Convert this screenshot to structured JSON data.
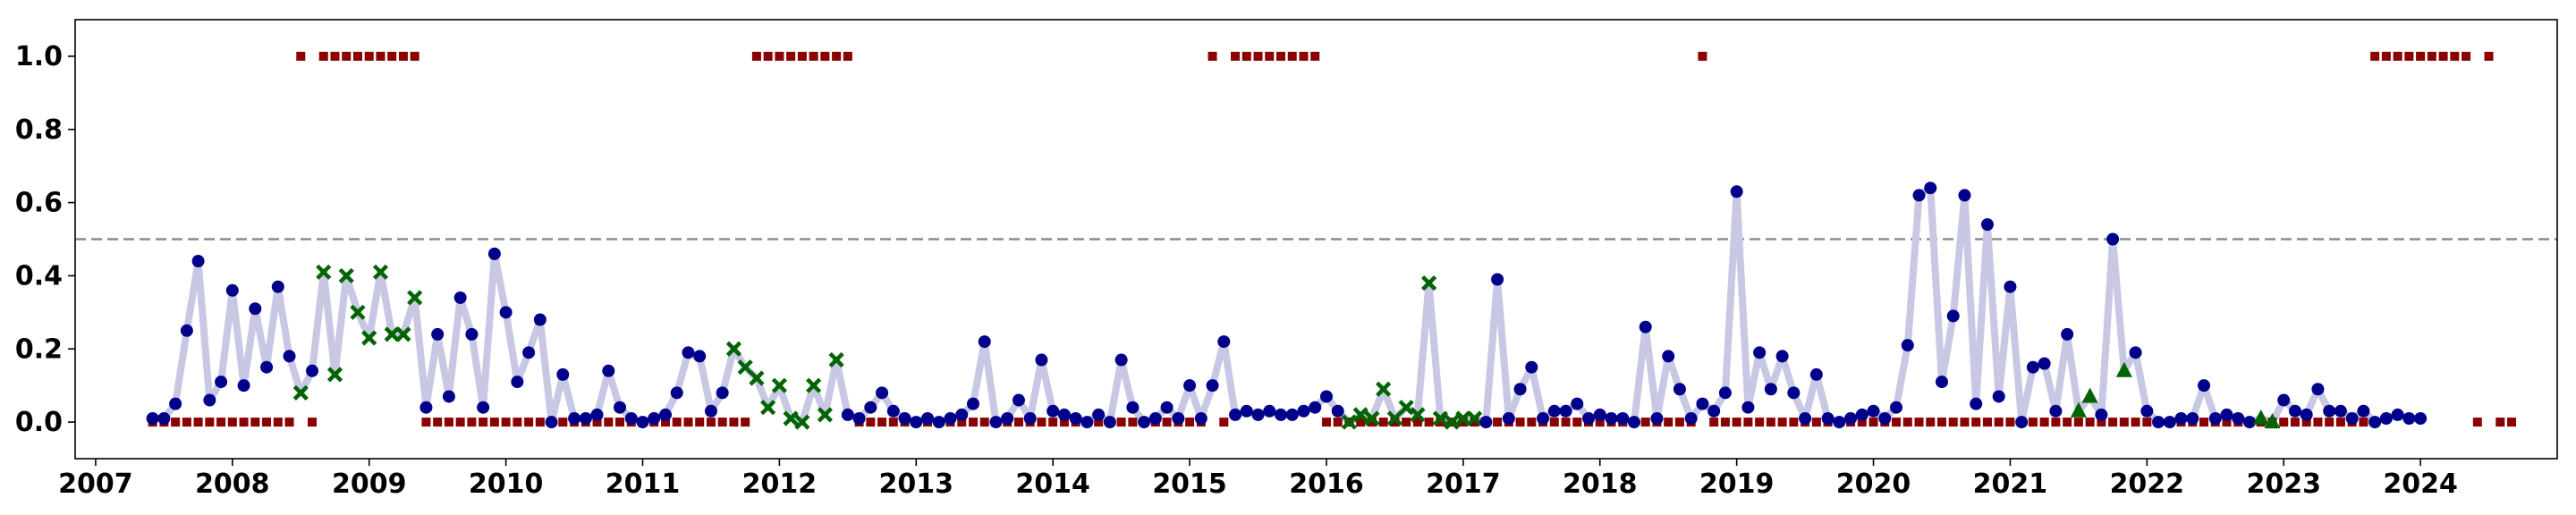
{
  "chart_data": {
    "type": "scatter",
    "title": "",
    "xlabel": "",
    "ylabel": "",
    "xlim": [
      2006.85,
      2025.0
    ],
    "ylim": [
      -0.1,
      1.1
    ],
    "threshold": 0.5,
    "grid": false,
    "legend": "none",
    "x_tick_labels": [
      "2007",
      "2008",
      "2009",
      "2010",
      "2011",
      "2012",
      "2013",
      "2014",
      "2015",
      "2016",
      "2017",
      "2018",
      "2019",
      "2020",
      "2021",
      "2022",
      "2023",
      "2024"
    ],
    "y_tick_labels": [
      "0.0",
      "0.2",
      "0.4",
      "0.6",
      "0.8",
      "1.0"
    ],
    "colors": {
      "line": "#c8c8e4",
      "circle": "#00008b",
      "cross": "#006400",
      "triangle": "#006400",
      "square": "#8b0000",
      "threshold": "#8c8c8c"
    },
    "start_year": 2007,
    "start_month": 6,
    "values": [
      0.01,
      0.01,
      0.05,
      0.25,
      0.44,
      0.06,
      0.11,
      0.36,
      0.1,
      0.31,
      0.15,
      0.37,
      0.18,
      0.08,
      0.14,
      0.41,
      0.13,
      0.4,
      0.3,
      0.23,
      0.41,
      0.24,
      0.24,
      0.34,
      0.04,
      0.24,
      0.07,
      0.34,
      0.24,
      0.04,
      0.46,
      0.3,
      0.11,
      0.19,
      0.28,
      0.0,
      0.13,
      0.01,
      0.01,
      0.02,
      0.14,
      0.04,
      0.01,
      0.0,
      0.01,
      0.02,
      0.08,
      0.19,
      0.18,
      0.03,
      0.08,
      0.2,
      0.15,
      0.12,
      0.04,
      0.1,
      0.01,
      0.0,
      0.1,
      0.02,
      0.17,
      0.02,
      0.01,
      0.04,
      0.08,
      0.03,
      0.01,
      0.0,
      0.01,
      0.0,
      0.01,
      0.02,
      0.05,
      0.22,
      0.0,
      0.01,
      0.06,
      0.01,
      0.17,
      0.03,
      0.02,
      0.01,
      0.0,
      0.02,
      0.0,
      0.17,
      0.04,
      0.0,
      0.01,
      0.04,
      0.01,
      0.1,
      0.01,
      0.1,
      0.22,
      0.02,
      0.03,
      0.02,
      0.03,
      0.02,
      0.02,
      0.03,
      0.04,
      0.07,
      0.03,
      0.0,
      0.02,
      0.01,
      0.09,
      0.01,
      0.04,
      0.02,
      0.38,
      0.01,
      0.0,
      0.01,
      0.01,
      0.0,
      0.39,
      0.01,
      0.09,
      0.15,
      0.01,
      0.03,
      0.03,
      0.05,
      0.01,
      0.02,
      0.01,
      0.01,
      0.0,
      0.26,
      0.01,
      0.18,
      0.09,
      0.01,
      0.05,
      0.03,
      0.08,
      0.63,
      0.04,
      0.19,
      0.09,
      0.18,
      0.08,
      0.01,
      0.13,
      0.01,
      0.0,
      0.01,
      0.02,
      0.03,
      0.01,
      0.04,
      0.21,
      0.62,
      0.64,
      0.11,
      0.29,
      0.62,
      0.05,
      0.54,
      0.07,
      0.37,
      0.0,
      0.15,
      0.16,
      0.03,
      0.24,
      0.03,
      0.07,
      0.02,
      0.5,
      0.14,
      0.19,
      0.03,
      0.0,
      0.0,
      0.01,
      0.01,
      0.1,
      0.01,
      0.02,
      0.01,
      0.0,
      0.01,
      0.0,
      0.06,
      0.03,
      0.02,
      0.09,
      0.03,
      0.03,
      0.01,
      0.03,
      0.0,
      0.01,
      0.02,
      0.01,
      0.01
    ],
    "markers": "cccccccccccccxcxxxxxxxxxcccccccccccccccccccccccccccxxxxxxxxxxccccccccccccccccccccccccccccccccccccccccccccxxxxxxxxxxxxccccccccccccccccccccccccccccccccccccccccccccccccccccttcctcccccccccccttccccccccccccccccccxxxxxxxxxxcxxx",
    "regime": [
      0,
      0,
      0,
      0,
      0,
      0,
      0,
      0,
      0,
      0,
      0,
      0,
      0,
      1,
      0,
      1,
      1,
      1,
      1,
      1,
      1,
      1,
      1,
      1,
      0,
      0,
      0,
      0,
      0,
      0,
      0,
      0,
      0,
      0,
      0,
      0,
      0,
      0,
      0,
      0,
      0,
      0,
      0,
      0,
      0,
      0,
      0,
      0,
      0,
      0,
      0,
      0,
      0,
      1,
      1,
      1,
      1,
      1,
      1,
      1,
      1,
      1,
      0,
      0,
      0,
      0,
      0,
      0,
      0,
      0,
      0,
      0,
      0,
      0,
      0,
      0,
      0,
      0,
      0,
      0,
      0,
      0,
      0,
      0,
      0,
      0,
      0,
      0,
      0,
      0,
      0,
      0,
      0,
      1,
      0,
      1,
      1,
      1,
      1,
      1,
      1,
      1,
      1,
      0,
      0,
      0,
      0,
      0,
      0,
      0,
      0,
      0,
      0,
      0,
      0,
      0,
      0,
      0,
      0,
      0,
      0,
      0,
      0,
      0,
      0,
      0,
      0,
      0,
      0,
      0,
      0,
      0,
      0,
      0,
      0,
      0,
      1,
      0,
      0,
      0,
      0,
      0,
      0,
      0,
      0,
      0,
      0,
      0,
      0,
      0,
      0,
      0,
      0,
      0,
      0,
      0,
      0,
      0,
      0,
      0,
      0,
      0,
      0,
      0,
      0,
      0,
      0,
      0,
      0,
      0,
      0,
      0,
      0,
      0,
      0,
      0,
      0,
      0,
      0,
      0,
      0,
      0,
      0,
      0,
      0,
      0,
      0,
      0,
      0,
      0,
      0,
      0,
      0,
      0,
      0,
      1,
      1,
      1,
      1,
      1,
      1,
      1,
      1,
      1,
      0,
      1,
      0,
      0
    ]
  }
}
